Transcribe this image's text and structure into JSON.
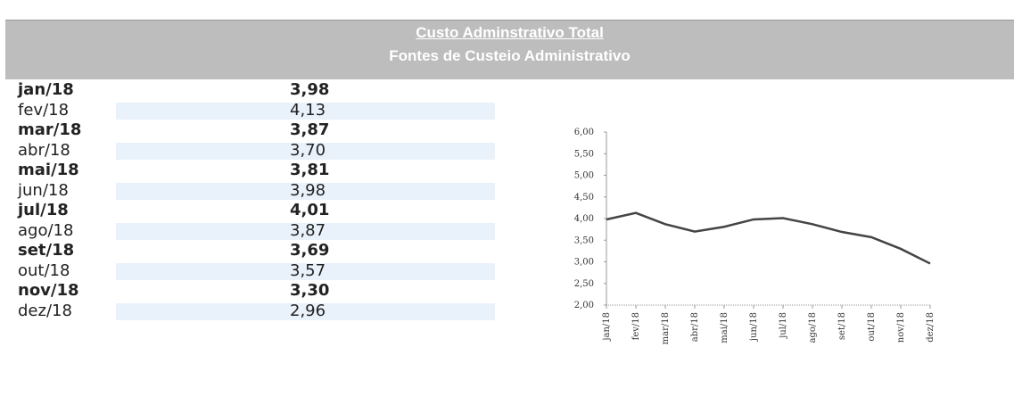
{
  "header": {
    "title": "Custo Adminstrativo Total",
    "subtitle": "Fontes de Custeio Administrativo"
  },
  "table": {
    "rows": [
      [
        "jan/18",
        "3,98"
      ],
      [
        "fev/18",
        "4,13"
      ],
      [
        "mar/18",
        "3,87"
      ],
      [
        "abr/18",
        "3,70"
      ],
      [
        "mai/18",
        "3,81"
      ],
      [
        "jun/18",
        "3,98"
      ],
      [
        "jul/18",
        "4,01"
      ],
      [
        "ago/18",
        "3,87"
      ],
      [
        "set/18",
        "3,69"
      ],
      [
        "out/18",
        "3,57"
      ],
      [
        "nov/18",
        "3,30"
      ],
      [
        "dez/18",
        "2,96"
      ]
    ]
  },
  "chart_data": {
    "type": "line",
    "categories": [
      "jan/18",
      "fev/18",
      "mar/18",
      "abr/18",
      "mai/18",
      "jun/18",
      "jul/18",
      "ago/18",
      "set/18",
      "out/18",
      "nov/18",
      "dez/18"
    ],
    "values": [
      3.98,
      4.13,
      3.87,
      3.7,
      3.81,
      3.98,
      4.01,
      3.87,
      3.69,
      3.57,
      3.3,
      2.96
    ],
    "color": "#444444",
    "ylim": [
      2,
      6
    ],
    "yticks": [
      {
        "value": 2,
        "label": "2,00"
      },
      {
        "value": 2.5,
        "label": "2,50"
      },
      {
        "value": 3,
        "label": "3,00"
      },
      {
        "value": 3.5,
        "label": "3,50"
      },
      {
        "value": 4,
        "label": "4,00"
      },
      {
        "value": 4.5,
        "label": "4,50"
      },
      {
        "value": 5,
        "label": "5,00"
      },
      {
        "value": 5.5,
        "label": "5,50"
      },
      {
        "value": 6,
        "label": "6,00"
      }
    ]
  }
}
